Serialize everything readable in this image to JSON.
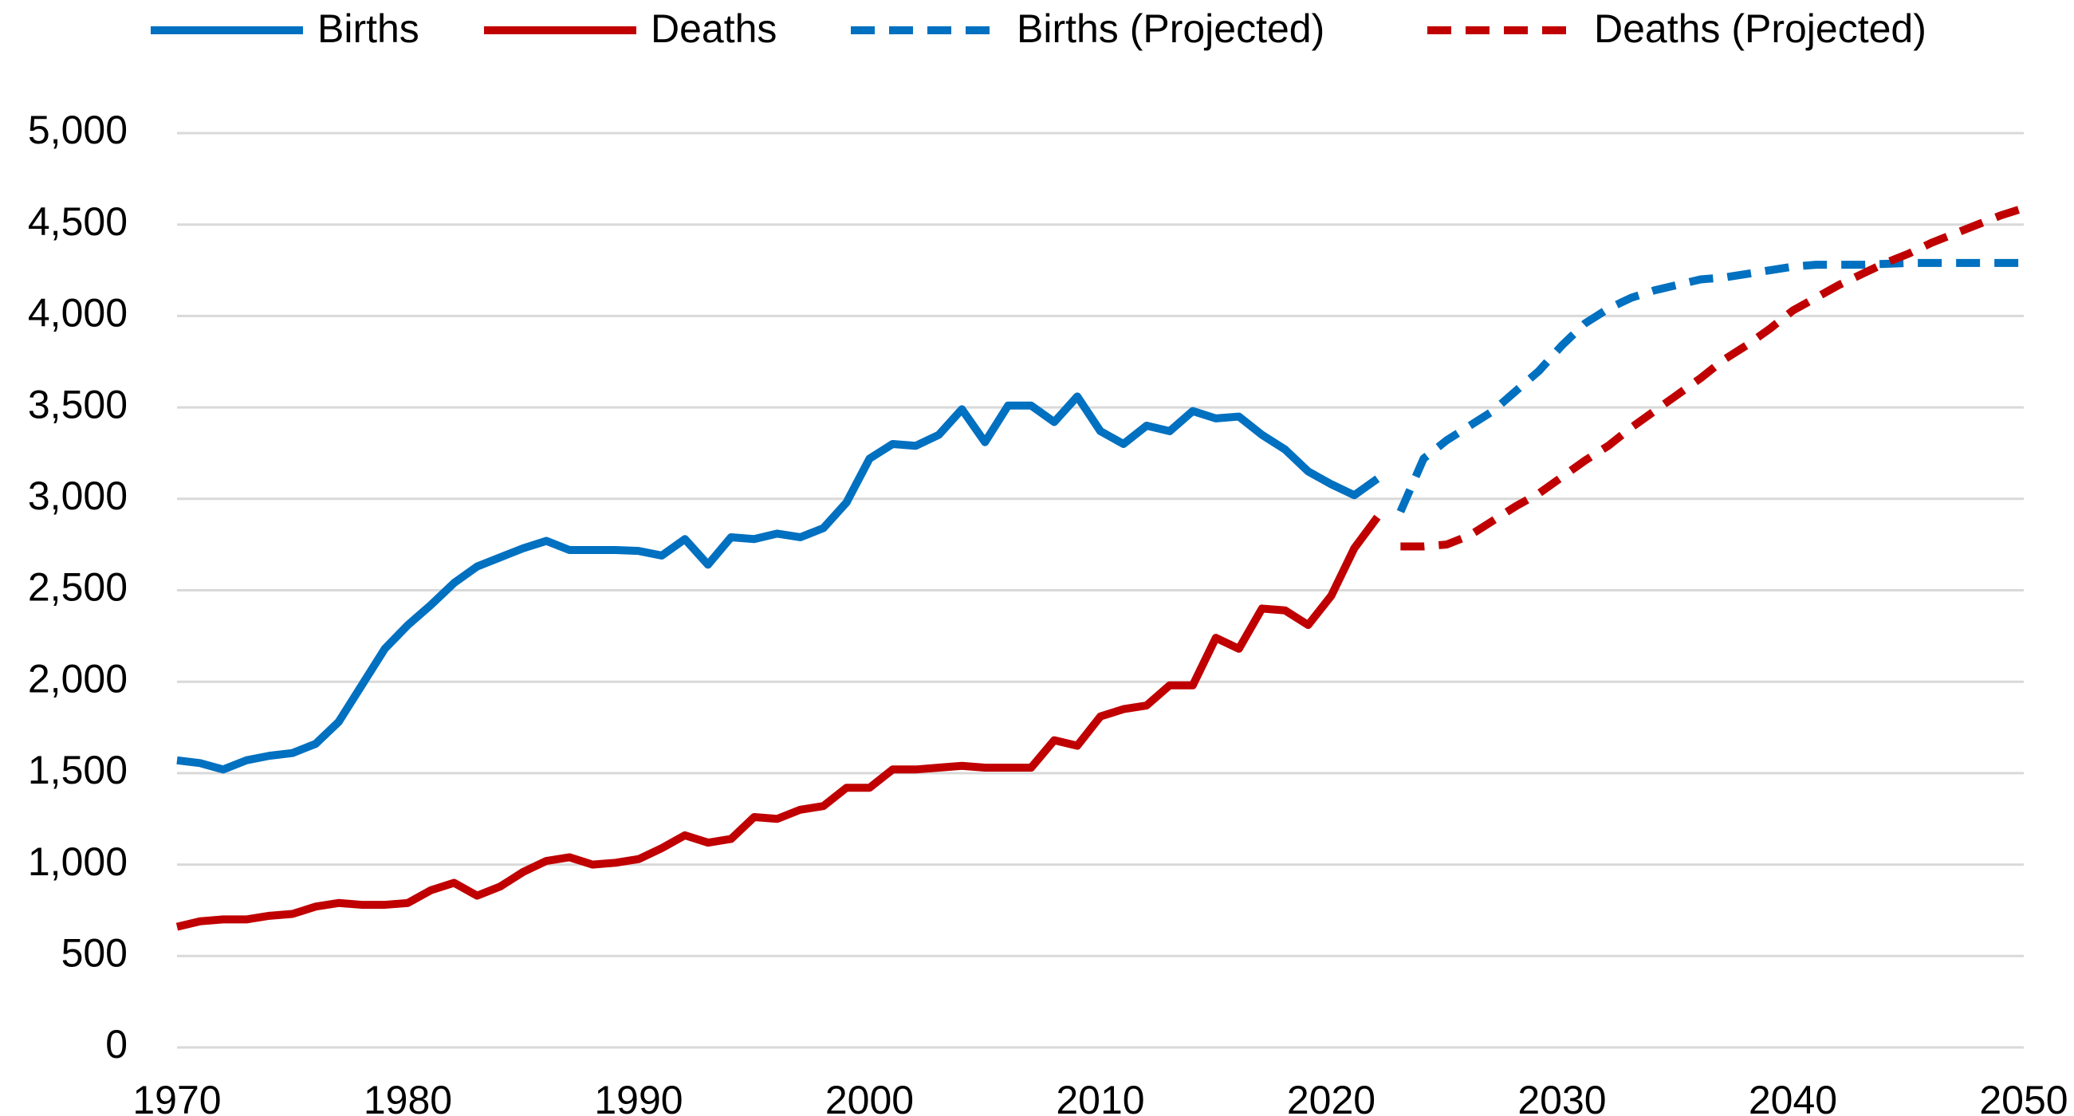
{
  "chart_data": {
    "type": "line",
    "xlim": [
      1970,
      2050
    ],
    "xticks": [
      1970,
      1980,
      1990,
      2000,
      2010,
      2020,
      2030,
      2040,
      2050
    ],
    "ylim": [
      0,
      5000
    ],
    "yticks": [
      0,
      500,
      {
        "value": 1000,
        "label": "1,000"
      },
      {
        "value": 1500,
        "label": "1,500"
      },
      {
        "value": 2000,
        "label": "2,000"
      },
      {
        "value": 2500,
        "label": "2,500"
      },
      {
        "value": 3000,
        "label": "3,000"
      },
      {
        "value": 3500,
        "label": "3,500"
      },
      {
        "value": 4000,
        "label": "4,000"
      },
      {
        "value": 4500,
        "label": "4,500"
      },
      {
        "value": 5000,
        "label": "5,000"
      }
    ],
    "grid": true,
    "legend": "top",
    "series": [
      {
        "name": "Births",
        "color": "#0070c0",
        "style": "solid",
        "x": [
          1970,
          1971,
          1972,
          1973,
          1974,
          1975,
          1976,
          1977,
          1978,
          1979,
          1980,
          1981,
          1982,
          1983,
          1984,
          1985,
          1986,
          1987,
          1988,
          1989,
          1990,
          1991,
          1992,
          1993,
          1994,
          1995,
          1996,
          1997,
          1998,
          1999,
          2000,
          2001,
          2002,
          2003,
          2004,
          2005,
          2006,
          2007,
          2008,
          2009,
          2010,
          2011,
          2012,
          2013,
          2014,
          2015,
          2016,
          2017,
          2018,
          2019,
          2020,
          2021,
          2022
        ],
        "values": [
          1570,
          1555,
          1520,
          1570,
          1595,
          1610,
          1660,
          1780,
          1980,
          2180,
          2310,
          2420,
          2540,
          2630,
          2680,
          2730,
          2770,
          2720,
          2720,
          2720,
          2715,
          2690,
          2780,
          2640,
          2790,
          2780,
          2810,
          2790,
          2840,
          2980,
          3220,
          3300,
          3290,
          3350,
          3490,
          3310,
          3510,
          3510,
          3420,
          3560,
          3370,
          3300,
          3400,
          3370,
          3480,
          3440,
          3450,
          3350,
          3270,
          3150,
          3080,
          3020,
          3110
        ]
      },
      {
        "name": "Deaths",
        "color": "#c00000",
        "style": "solid",
        "x": [
          1970,
          1971,
          1972,
          1973,
          1974,
          1975,
          1976,
          1977,
          1978,
          1979,
          1980,
          1981,
          1982,
          1983,
          1984,
          1985,
          1986,
          1987,
          1988,
          1989,
          1990,
          1991,
          1992,
          1993,
          1994,
          1995,
          1996,
          1997,
          1998,
          1999,
          2000,
          2001,
          2002,
          2003,
          2004,
          2005,
          2006,
          2007,
          2008,
          2009,
          2010,
          2011,
          2012,
          2013,
          2014,
          2015,
          2016,
          2017,
          2018,
          2019,
          2020,
          2021,
          2022
        ],
        "values": [
          660,
          690,
          700,
          700,
          720,
          730,
          770,
          790,
          780,
          780,
          790,
          860,
          900,
          830,
          880,
          960,
          1020,
          1040,
          1000,
          1010,
          1030,
          1090,
          1160,
          1120,
          1140,
          1260,
          1250,
          1300,
          1320,
          1420,
          1420,
          1520,
          1520,
          1530,
          1540,
          1530,
          1530,
          1530,
          1680,
          1650,
          1810,
          1850,
          1870,
          1980,
          1980,
          2240,
          2180,
          2400,
          2390,
          2310,
          2470,
          2730,
          2900
        ]
      },
      {
        "name": "Births (Projected)",
        "color": "#0070c0",
        "style": "dashed",
        "x": [
          2023,
          2024,
          2025,
          2026,
          2027,
          2028,
          2029,
          2030,
          2031,
          2032,
          2033,
          2034,
          2035,
          2036,
          2037,
          2038,
          2039,
          2040,
          2041,
          2042,
          2043,
          2044,
          2045,
          2046,
          2047,
          2048,
          2049,
          2050
        ],
        "values": [
          2930,
          3220,
          3320,
          3400,
          3480,
          3590,
          3700,
          3840,
          3960,
          4040,
          4100,
          4140,
          4170,
          4200,
          4210,
          4230,
          4250,
          4270,
          4280,
          4280,
          4280,
          4285,
          4290,
          4290,
          4290,
          4290,
          4290,
          4290
        ]
      },
      {
        "name": "Deaths (Projected)",
        "color": "#c00000",
        "style": "dashed",
        "x": [
          2023,
          2024,
          2025,
          2026,
          2027,
          2028,
          2029,
          2030,
          2031,
          2032,
          2033,
          2034,
          2035,
          2036,
          2037,
          2038,
          2039,
          2040,
          2041,
          2042,
          2043,
          2044,
          2045,
          2046,
          2047,
          2048,
          2049,
          2050
        ],
        "values": [
          2740,
          2740,
          2750,
          2800,
          2880,
          2960,
          3030,
          3120,
          3210,
          3290,
          3390,
          3480,
          3570,
          3660,
          3760,
          3840,
          3930,
          4030,
          4100,
          4170,
          4230,
          4290,
          4340,
          4400,
          4450,
          4500,
          4550,
          4590
        ]
      }
    ]
  }
}
